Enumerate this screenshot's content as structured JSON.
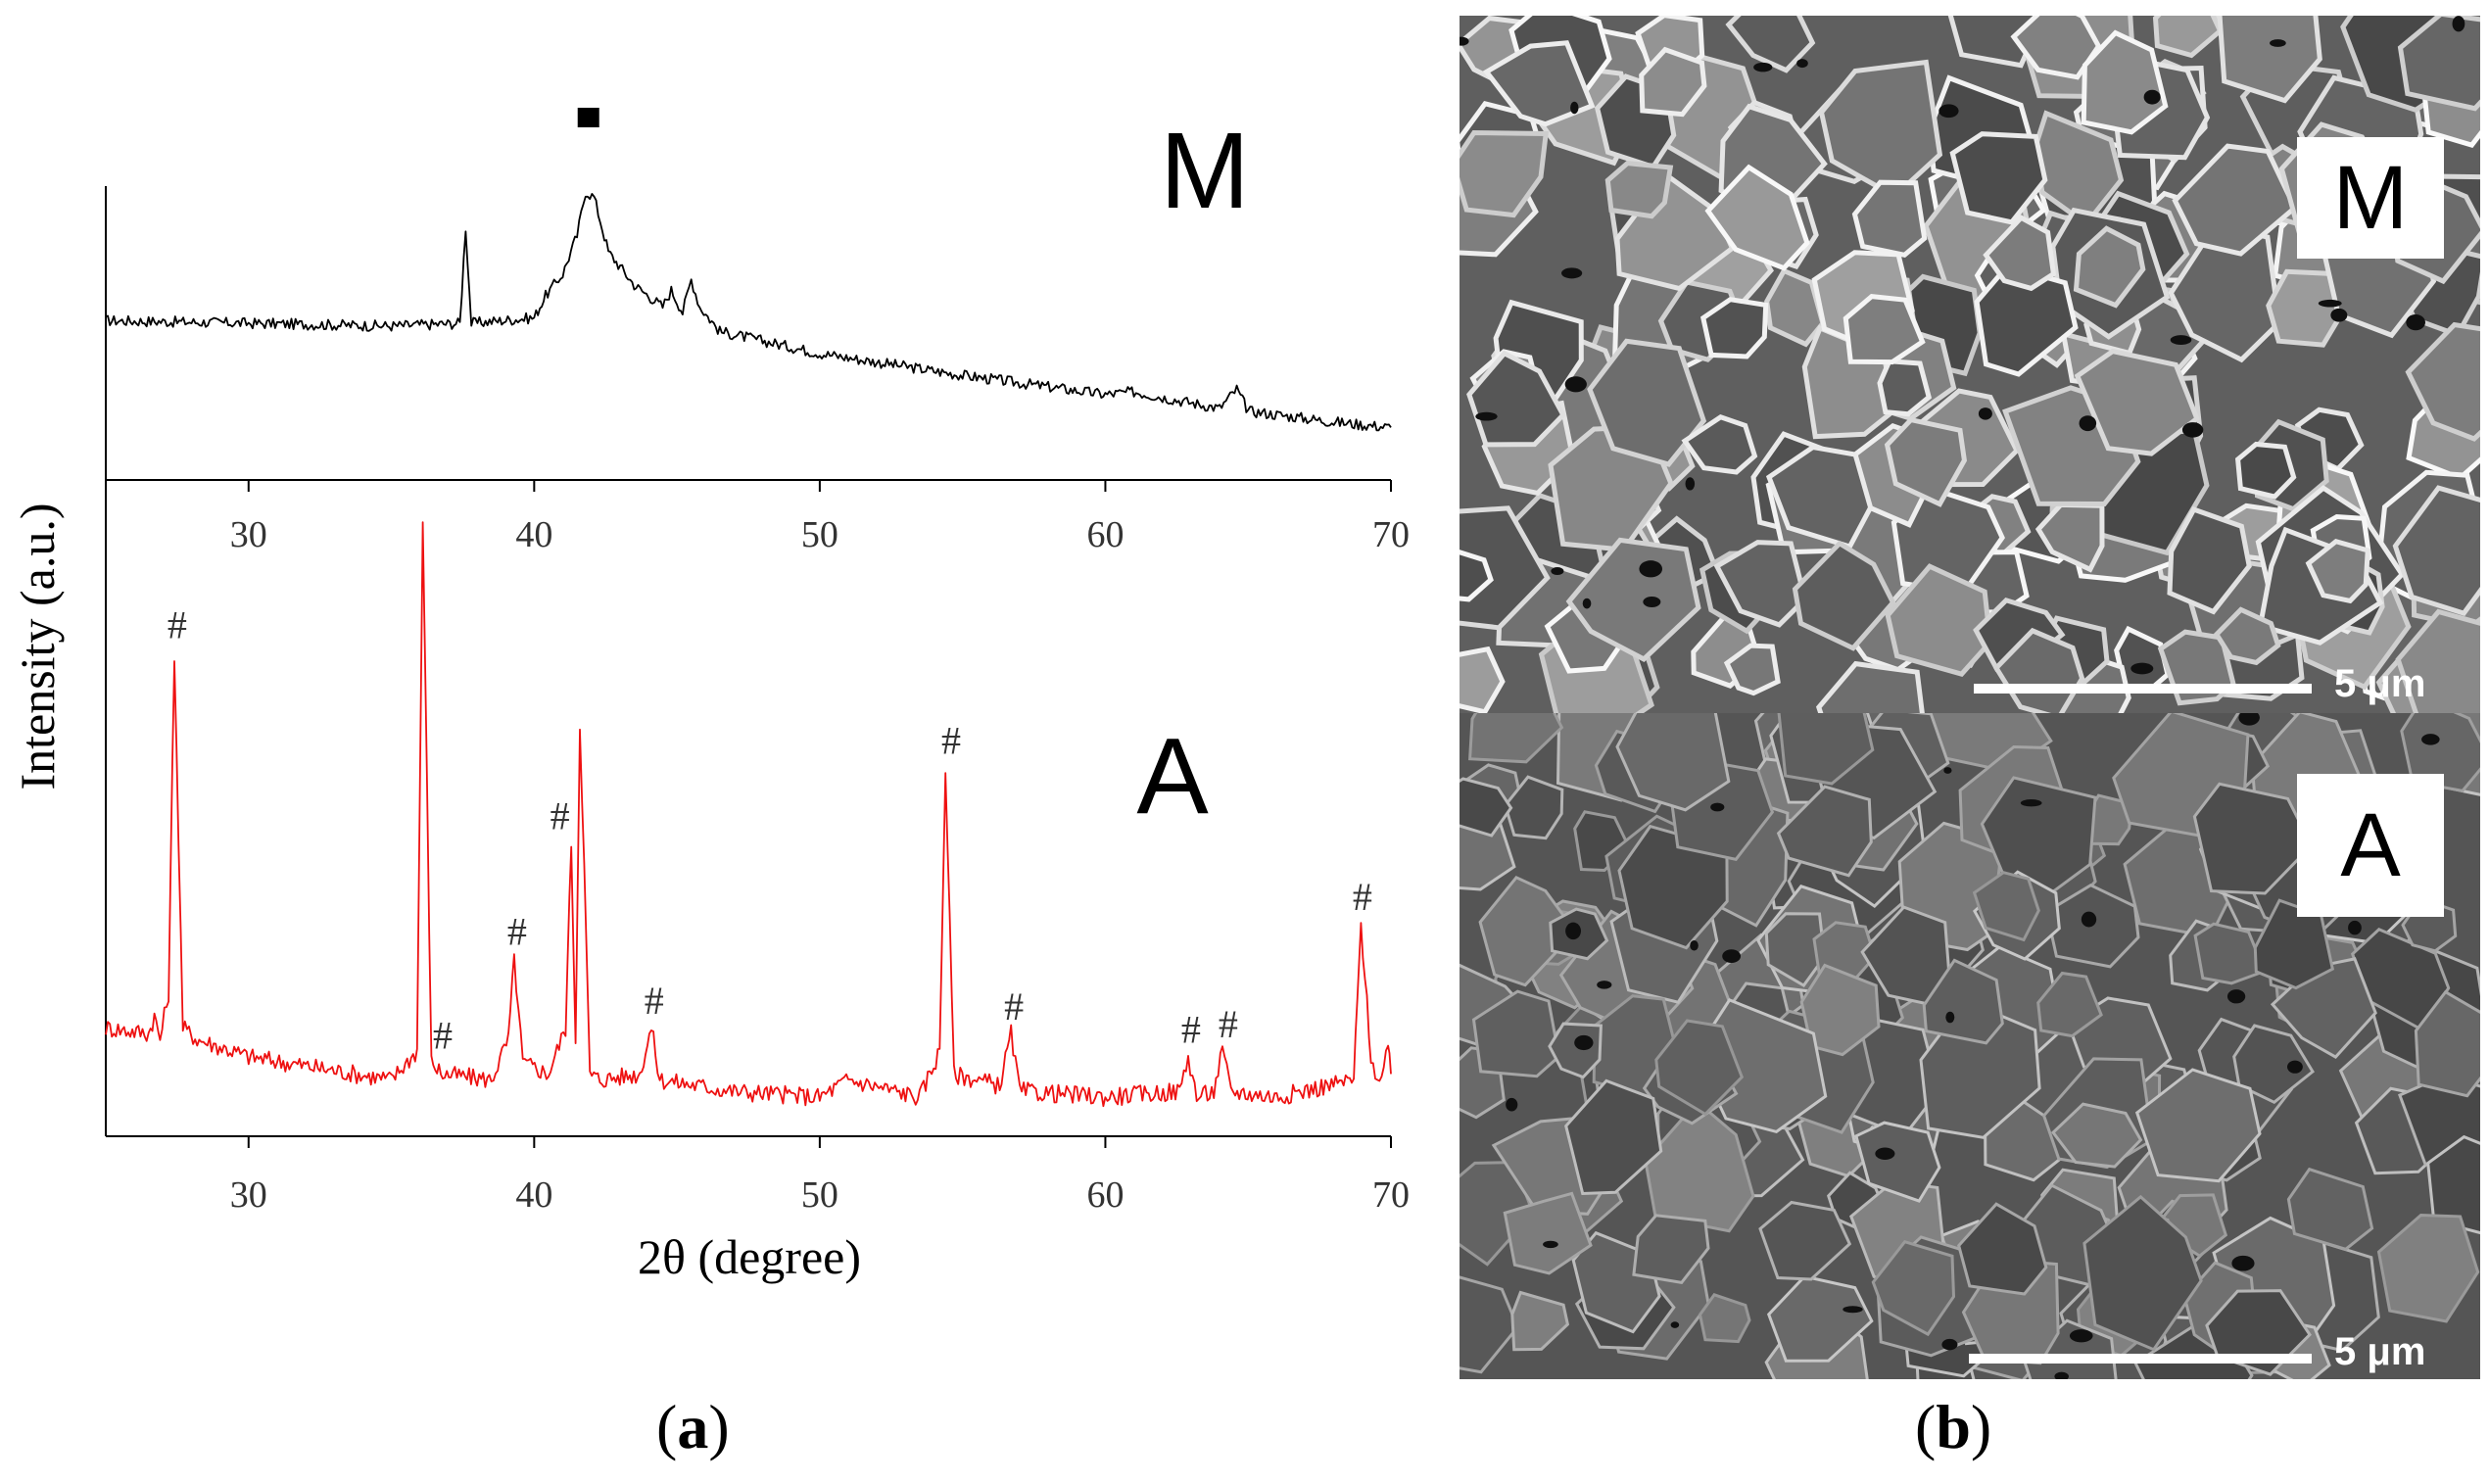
{
  "chart_data": [
    {
      "type": "line",
      "panel": "M",
      "label": "M",
      "series": [
        {
          "color": "#000000",
          "x": [
            25.0,
            30.0,
            35.0,
            37.4,
            37.6,
            37.8,
            40.0,
            40.4,
            41.0,
            41.5,
            41.8,
            42.1,
            42.6,
            43.5,
            44.5,
            44.8,
            45.2,
            45.5,
            45.8,
            46.5,
            50.0,
            55.0,
            60.0,
            61.0,
            64.0,
            64.6,
            65.0,
            68.0,
            70.0
          ],
          "y": [
            51,
            50,
            49,
            50,
            85,
            50,
            52,
            60,
            68,
            82,
            98,
            96,
            76,
            64,
            56,
            62,
            54,
            66,
            56,
            47,
            39,
            31,
            24,
            25,
            19,
            26,
            18,
            14,
            12
          ]
        }
      ],
      "markers": [
        {
          "x": 41.9,
          "symbol": "■"
        }
      ],
      "xlim": [
        25,
        70
      ],
      "ylim": [
        0,
        100
      ],
      "xticks": [
        "30",
        "40",
        "50",
        "60",
        "70"
      ]
    },
    {
      "type": "line",
      "panel": "A",
      "label": "A",
      "series": [
        {
          "color": "#ee1111",
          "x": [
            25.0,
            26.5,
            26.7,
            26.9,
            27.2,
            27.4,
            27.7,
            28.2,
            30.0,
            35.0,
            35.9,
            36.1,
            36.4,
            36.8,
            38.5,
            39.1,
            39.3,
            39.6,
            40.5,
            41.1,
            41.3,
            41.45,
            41.6,
            41.75,
            41.95,
            42.3,
            43.7,
            44.1,
            44.4,
            47.0,
            50.0,
            51.0,
            53.5,
            54.2,
            54.4,
            54.7,
            56.3,
            56.7,
            57.0,
            60.0,
            62.6,
            62.9,
            63.2,
            63.8,
            64.1,
            64.4,
            66.0,
            68.7,
            68.95,
            69.3,
            69.6,
            69.9,
            70.0
          ],
          "y": [
            12,
            11,
            14,
            10,
            18,
            77,
            12,
            10,
            7,
            3,
            8,
            100,
            6,
            4,
            3,
            10,
            24,
            6,
            4,
            12,
            44,
            10,
            65,
            40,
            4,
            3,
            4,
            12,
            3,
            1,
            0,
            3,
            0,
            8,
            57,
            4,
            2,
            11,
            1,
            0,
            1,
            7,
            0,
            1,
            8,
            1,
            0,
            3,
            30,
            7,
            2,
            8,
            4
          ]
        }
      ],
      "markers": [
        {
          "x": 27.5,
          "symbol": "#"
        },
        {
          "x": 36.8,
          "symbol": "#"
        },
        {
          "x": 39.4,
          "symbol": "#"
        },
        {
          "x": 40.9,
          "symbol": "#"
        },
        {
          "x": 44.2,
          "symbol": "#"
        },
        {
          "x": 54.6,
          "symbol": "#"
        },
        {
          "x": 56.8,
          "symbol": "#"
        },
        {
          "x": 63.0,
          "symbol": "#"
        },
        {
          "x": 64.3,
          "symbol": "#"
        },
        {
          "x": 69.0,
          "symbol": "#"
        }
      ],
      "xlim": [
        25,
        70
      ],
      "ylim": [
        0,
        100
      ],
      "xticks": [
        "30",
        "40",
        "50",
        "60",
        "70"
      ]
    }
  ],
  "axes": {
    "ylabel": "Intensity (a.u.)",
    "xlabel": "2θ (degree)"
  },
  "captions": {
    "a": "a",
    "b": "b"
  },
  "sem": {
    "panels": [
      {
        "label": "M",
        "scale": "5 μm"
      },
      {
        "label": "A",
        "scale": "5 μm"
      }
    ]
  },
  "colors": {
    "pattern_m": "#000000",
    "pattern_a": "#ee1111",
    "sem_background": "#5a5a5a"
  }
}
